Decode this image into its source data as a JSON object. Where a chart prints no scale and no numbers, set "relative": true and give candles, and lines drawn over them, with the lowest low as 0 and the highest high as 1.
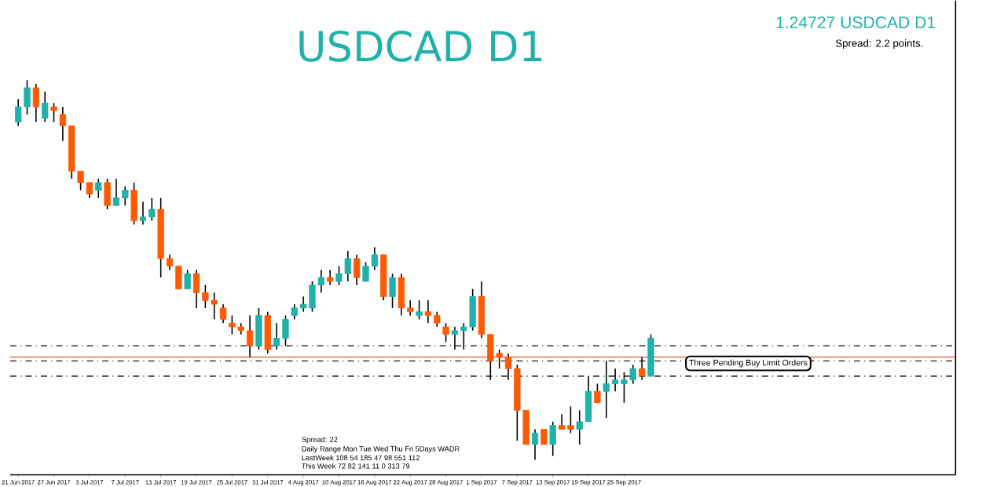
{
  "chart_data": {
    "type": "candlestick",
    "title": "USDCAD D1",
    "subtitle": "1.24727 USDCAD D1",
    "relative": true,
    "annotations": [
      "Spread: 2.2 points.",
      "Three Pending Buy Limit Orders",
      "Spread: 22",
      "Daily Range Mon Tue Wed Thu Fri 5Days WADR",
      "LastWeek 108 54 185 47 98 551 112",
      "This Week 72 82 141 11 0 313 79"
    ],
    "categories": [
      "21 Jun 2017",
      null,
      null,
      null,
      "27 Jun 2017",
      null,
      null,
      null,
      "3 Jul 2017",
      null,
      null,
      null,
      "7 Jul 2017",
      null,
      null,
      null,
      "13 Jul 2017",
      null,
      null,
      null,
      "19 Jul 2017",
      null,
      null,
      null,
      "25 Jul 2017",
      null,
      null,
      null,
      "31 Jul 2017",
      null,
      null,
      null,
      "4 Aug 2017",
      null,
      null,
      null,
      "10 Aug 2017",
      null,
      null,
      null,
      "16 Aug 2017",
      null,
      null,
      null,
      "22 Aug 2017",
      null,
      null,
      null,
      "28 Aug 2017",
      null,
      null,
      null,
      "1 Sep 2017",
      null,
      null,
      null,
      "7 Sep 2017",
      null,
      null,
      null,
      "13 Sep 2017",
      null,
      null,
      null,
      "19 Sep 2017",
      null,
      null,
      null,
      "25 Sep 2017",
      null,
      null,
      null
    ],
    "ohlc": [
      [
        0.89,
        0.95,
        0.88,
        0.93
      ],
      [
        0.93,
        1.0,
        0.91,
        0.98
      ],
      [
        0.98,
        0.99,
        0.89,
        0.93
      ],
      [
        0.9,
        0.97,
        0.89,
        0.94
      ],
      [
        0.93,
        0.94,
        0.89,
        0.92
      ],
      [
        0.91,
        0.93,
        0.84,
        0.88
      ],
      [
        0.88,
        0.88,
        0.74,
        0.76
      ],
      [
        0.76,
        0.76,
        0.71,
        0.73
      ],
      [
        0.73,
        0.73,
        0.69,
        0.7
      ],
      [
        0.71,
        0.74,
        0.69,
        0.73
      ],
      [
        0.73,
        0.74,
        0.66,
        0.67
      ],
      [
        0.67,
        0.74,
        0.67,
        0.69
      ],
      [
        0.69,
        0.72,
        0.67,
        0.71
      ],
      [
        0.71,
        0.73,
        0.62,
        0.63
      ],
      [
        0.63,
        0.68,
        0.62,
        0.64
      ],
      [
        0.64,
        0.69,
        0.63,
        0.66
      ],
      [
        0.66,
        0.69,
        0.48,
        0.53
      ],
      [
        0.53,
        0.54,
        0.5,
        0.51
      ],
      [
        0.51,
        0.51,
        0.45,
        0.45
      ],
      [
        0.45,
        0.5,
        0.45,
        0.49
      ],
      [
        0.49,
        0.5,
        0.4,
        0.44
      ],
      [
        0.44,
        0.46,
        0.4,
        0.42
      ],
      [
        0.42,
        0.44,
        0.37,
        0.41
      ],
      [
        0.4,
        0.41,
        0.36,
        0.37
      ],
      [
        0.36,
        0.38,
        0.33,
        0.35
      ],
      [
        0.35,
        0.36,
        0.33,
        0.34
      ],
      [
        0.34,
        0.38,
        0.27,
        0.3
      ],
      [
        0.3,
        0.4,
        0.29,
        0.38
      ],
      [
        0.38,
        0.39,
        0.28,
        0.29
      ],
      [
        0.3,
        0.36,
        0.29,
        0.32
      ],
      [
        0.32,
        0.38,
        0.3,
        0.37
      ],
      [
        0.38,
        0.41,
        0.37,
        0.4
      ],
      [
        0.4,
        0.43,
        0.39,
        0.41
      ],
      [
        0.4,
        0.47,
        0.39,
        0.46
      ],
      [
        0.46,
        0.5,
        0.44,
        0.48
      ],
      [
        0.48,
        0.5,
        0.46,
        0.47
      ],
      [
        0.47,
        0.51,
        0.46,
        0.49
      ],
      [
        0.49,
        0.55,
        0.47,
        0.53
      ],
      [
        0.53,
        0.54,
        0.46,
        0.48
      ],
      [
        0.47,
        0.52,
        0.47,
        0.51
      ],
      [
        0.51,
        0.56,
        0.5,
        0.54
      ],
      [
        0.54,
        0.54,
        0.42,
        0.43
      ],
      [
        0.43,
        0.49,
        0.4,
        0.48
      ],
      [
        0.48,
        0.49,
        0.38,
        0.4
      ],
      [
        0.4,
        0.42,
        0.38,
        0.39
      ],
      [
        0.38,
        0.42,
        0.37,
        0.39
      ],
      [
        0.39,
        0.42,
        0.36,
        0.38
      ],
      [
        0.38,
        0.39,
        0.35,
        0.36
      ],
      [
        0.35,
        0.36,
        0.31,
        0.33
      ],
      [
        0.33,
        0.35,
        0.29,
        0.34
      ],
      [
        0.34,
        0.36,
        0.29,
        0.35
      ],
      [
        0.35,
        0.45,
        0.34,
        0.43
      ],
      [
        0.43,
        0.47,
        0.32,
        0.33
      ],
      [
        0.33,
        0.33,
        0.21,
        0.26
      ],
      [
        0.28,
        0.29,
        0.24,
        0.27
      ],
      [
        0.27,
        0.28,
        0.21,
        0.24
      ],
      [
        0.24,
        0.25,
        0.05,
        0.13
      ],
      [
        0.13,
        0.13,
        0.04,
        0.04
      ],
      [
        0.04,
        0.08,
        0.0,
        0.07
      ],
      [
        0.08,
        0.08,
        0.04,
        0.04
      ],
      [
        0.04,
        0.1,
        0.01,
        0.09
      ],
      [
        0.09,
        0.12,
        0.08,
        0.08
      ],
      [
        0.09,
        0.14,
        0.07,
        0.08
      ],
      [
        0.08,
        0.13,
        0.04,
        0.1
      ],
      [
        0.1,
        0.22,
        0.1,
        0.18
      ],
      [
        0.18,
        0.2,
        0.15,
        0.15
      ],
      [
        0.18,
        0.26,
        0.11,
        0.2
      ],
      [
        0.2,
        0.24,
        0.18,
        0.21
      ],
      [
        0.2,
        0.23,
        0.15,
        0.21
      ],
      [
        0.21,
        0.25,
        0.2,
        0.24
      ],
      [
        0.24,
        0.27,
        0.21,
        0.22
      ],
      [
        0.22,
        0.33,
        0.22,
        0.32
      ]
    ],
    "colors": [
      "#20b2aa",
      "#20b2aa",
      "#ff5a00",
      "#20b2aa",
      "#ff5a00",
      "#ff5a00",
      "#ff5a00",
      "#ff5a00",
      "#ff5a00",
      "#20b2aa",
      "#ff5a00",
      "#20b2aa",
      "#20b2aa",
      "#ff5a00",
      "#20b2aa",
      "#20b2aa",
      "#ff5a00",
      "#ff5a00",
      "#ff5a00",
      "#20b2aa",
      "#ff5a00",
      "#ff5a00",
      "#ff5a00",
      "#ff5a00",
      "#ff5a00",
      "#ff5a00",
      "#ff5a00",
      "#20b2aa",
      "#ff5a00",
      "#20b2aa",
      "#20b2aa",
      "#20b2aa",
      "#20b2aa",
      "#20b2aa",
      "#20b2aa",
      "#ff5a00",
      "#20b2aa",
      "#20b2aa",
      "#ff5a00",
      "#20b2aa",
      "#20b2aa",
      "#ff5a00",
      "#20b2aa",
      "#ff5a00",
      "#ff5a00",
      "#20b2aa",
      "#ff5a00",
      "#ff5a00",
      "#ff5a00",
      "#20b2aa",
      "#20b2aa",
      "#20b2aa",
      "#ff5a00",
      "#ff5a00",
      "#ff5a00",
      "#ff5a00",
      "#ff5a00",
      "#ff5a00",
      "#20b2aa",
      "#ff5a00",
      "#20b2aa",
      "#ff5a00",
      "#ff5a00",
      "#20b2aa",
      "#20b2aa",
      "#ff5a00",
      "#20b2aa",
      "#20b2aa",
      "#20b2aa",
      "#20b2aa",
      "#ff5a00",
      "#20b2aa"
    ],
    "ref_lines": [
      {
        "axis": "y",
        "value": 0.3,
        "color": "#333333",
        "line_style": "dashdot"
      },
      {
        "axis": "y",
        "value": 0.26,
        "color": "#333333",
        "line_style": "dashdot"
      },
      {
        "axis": "y",
        "value": 0.22,
        "color": "#333333",
        "line_style": "dashdot"
      },
      {
        "axis": "y",
        "value": 0.27,
        "color": "#e05040",
        "line_style": "solid"
      }
    ]
  }
}
